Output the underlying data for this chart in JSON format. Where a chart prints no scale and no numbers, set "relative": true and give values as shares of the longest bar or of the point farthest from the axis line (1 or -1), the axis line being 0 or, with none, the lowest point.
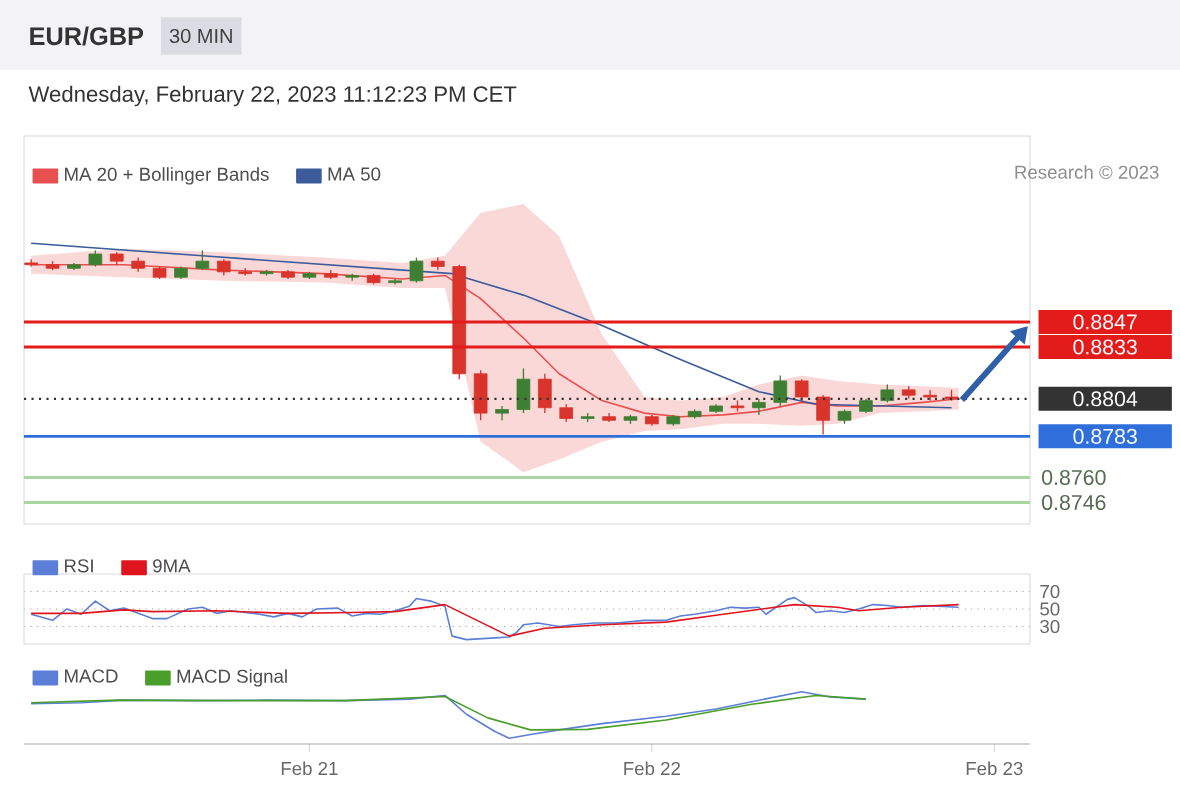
{
  "chart_data": [
    {
      "type": "candlestick",
      "title": "EUR/GBP",
      "subtitle": "Wednesday, February 22, 2023 11:12:23 PM CET",
      "annotations": [
        "30 MIN",
        "Research © 2023"
      ],
      "x": [
        "2023-02-20T04:30",
        "2023-02-20T06:00",
        "2023-02-20T07:30",
        "2023-02-20T09:00",
        "2023-02-20T10:30",
        "2023-02-20T12:00",
        "2023-02-20T13:30",
        "2023-02-20T15:00",
        "2023-02-20T16:30",
        "2023-02-20T18:00",
        "2023-02-20T19:30",
        "2023-02-20T21:00",
        "2023-02-20T22:30",
        "2023-02-21T00:00",
        "2023-02-21T01:30",
        "2023-02-21T03:00",
        "2023-02-21T04:30",
        "2023-02-21T06:00",
        "2023-02-21T07:30",
        "2023-02-21T09:00",
        "2023-02-21T10:30",
        "2023-02-21T12:00",
        "2023-02-21T13:30",
        "2023-02-21T15:00",
        "2023-02-21T16:30",
        "2023-02-21T18:00",
        "2023-02-21T19:30",
        "2023-02-21T21:00",
        "2023-02-21T22:30",
        "2023-02-22T00:00",
        "2023-02-22T01:30",
        "2023-02-22T03:00",
        "2023-02-22T04:30",
        "2023-02-22T06:00",
        "2023-02-22T07:30",
        "2023-02-22T09:00",
        "2023-02-22T10:30",
        "2023-02-22T12:00",
        "2023-02-22T13:30",
        "2023-02-22T15:00",
        "2023-02-22T16:30",
        "2023-02-22T18:00",
        "2023-02-22T19:30",
        "2023-02-22T21:00"
      ],
      "ohlc": [
        [
          0.888,
          0.8882,
          0.8878,
          0.8879
        ],
        [
          0.8879,
          0.8881,
          0.8876,
          0.8877
        ],
        [
          0.8877,
          0.888,
          0.8876,
          0.8879
        ],
        [
          0.8879,
          0.8887,
          0.8878,
          0.8885
        ],
        [
          0.8885,
          0.8886,
          0.8879,
          0.8881
        ],
        [
          0.8881,
          0.8883,
          0.8875,
          0.8877
        ],
        [
          0.8877,
          0.8878,
          0.8871,
          0.8872
        ],
        [
          0.8872,
          0.8878,
          0.8871,
          0.8877
        ],
        [
          0.8877,
          0.8887,
          0.8876,
          0.8881
        ],
        [
          0.8881,
          0.8882,
          0.8873,
          0.8875
        ],
        [
          0.8875,
          0.8877,
          0.8873,
          0.8874
        ],
        [
          0.8874,
          0.8876,
          0.8873,
          0.8875
        ],
        [
          0.8875,
          0.8876,
          0.8871,
          0.8872
        ],
        [
          0.8872,
          0.8875,
          0.8871,
          0.8874
        ],
        [
          0.8874,
          0.8876,
          0.8871,
          0.8872
        ],
        [
          0.8872,
          0.8874,
          0.887,
          0.8873
        ],
        [
          0.8873,
          0.8874,
          0.8868,
          0.8869
        ],
        [
          0.8869,
          0.8871,
          0.8868,
          0.887
        ],
        [
          0.887,
          0.8883,
          0.8869,
          0.8881
        ],
        [
          0.8881,
          0.8883,
          0.8876,
          0.8878
        ],
        [
          0.8878,
          0.8879,
          0.8815,
          0.8818
        ],
        [
          0.8818,
          0.882,
          0.8792,
          0.8796
        ],
        [
          0.8796,
          0.88,
          0.8792,
          0.8798
        ],
        [
          0.8798,
          0.8821,
          0.8796,
          0.8815
        ],
        [
          0.8815,
          0.8818,
          0.8796,
          0.8799
        ],
        [
          0.8799,
          0.8801,
          0.8791,
          0.8793
        ],
        [
          0.8793,
          0.8796,
          0.8791,
          0.8794
        ],
        [
          0.8794,
          0.8796,
          0.8791,
          0.8792
        ],
        [
          0.8792,
          0.8795,
          0.879,
          0.8794
        ],
        [
          0.8794,
          0.8795,
          0.8789,
          0.879
        ],
        [
          0.879,
          0.8795,
          0.8789,
          0.8794
        ],
        [
          0.8794,
          0.8798,
          0.8793,
          0.8797
        ],
        [
          0.8797,
          0.8801,
          0.8796,
          0.88
        ],
        [
          0.88,
          0.8803,
          0.8797,
          0.8799
        ],
        [
          0.8799,
          0.8804,
          0.8795,
          0.8802
        ],
        [
          0.8802,
          0.8817,
          0.88,
          0.8814
        ],
        [
          0.8814,
          0.8815,
          0.8802,
          0.8805
        ],
        [
          0.8805,
          0.8806,
          0.8784,
          0.8792
        ],
        [
          0.8792,
          0.8798,
          0.879,
          0.8797
        ],
        [
          0.8797,
          0.8804,
          0.8796,
          0.8803
        ],
        [
          0.8803,
          0.8812,
          0.8802,
          0.8809
        ],
        [
          0.8809,
          0.8811,
          0.8804,
          0.8806
        ],
        [
          0.8806,
          0.8809,
          0.8803,
          0.8805
        ],
        [
          0.8805,
          0.8809,
          0.8803,
          0.8804
        ]
      ],
      "xlim": [
        "2023-02-20T04:00",
        "2023-02-23T02:30"
      ],
      "ylim": [
        0.8734,
        0.8951
      ],
      "tick_labels": false,
      "legend": "top left",
      "series": [
        {
          "name": "MA 20 + Bollinger Bands",
          "type": "line",
          "color": "#e8504f",
          "x": [
            "2023-02-20T04:30",
            "2023-02-20T11:00",
            "2023-02-20T18:00",
            "2023-02-21T01:00",
            "2023-02-21T06:30",
            "2023-02-21T09:30",
            "2023-02-21T12:00",
            "2023-02-21T15:00",
            "2023-02-21T17:30",
            "2023-02-21T20:30",
            "2023-02-21T23:30",
            "2023-02-22T02:00",
            "2023-02-22T05:00",
            "2023-02-22T07:30",
            "2023-02-22T10:30",
            "2023-02-22T13:00",
            "2023-02-22T16:00",
            "2023-02-22T19:00",
            "2023-02-22T21:30"
          ],
          "values": [
            0.8879,
            0.8879,
            0.8876,
            0.8874,
            0.8871,
            0.8873,
            0.886,
            0.8838,
            0.8818,
            0.8803,
            0.8796,
            0.8794,
            0.8795,
            0.8797,
            0.8802,
            0.88,
            0.88,
            0.8802,
            0.8804
          ],
          "upper": [
            0.8884,
            0.8888,
            0.8886,
            0.8883,
            0.888,
            0.8884,
            0.8908,
            0.8913,
            0.8895,
            0.884,
            0.8805,
            0.8803,
            0.8805,
            0.8812,
            0.8817,
            0.8814,
            0.8812,
            0.8811,
            0.881
          ],
          "lower": [
            0.8874,
            0.8872,
            0.887,
            0.8869,
            0.8866,
            0.8866,
            0.878,
            0.8763,
            0.877,
            0.878,
            0.8786,
            0.8787,
            0.879,
            0.879,
            0.8789,
            0.879,
            0.8796,
            0.8797,
            0.8798
          ]
        },
        {
          "name": "MA 50",
          "type": "line",
          "color": "#3b5b9b",
          "x": [
            "2023-02-20T04:30",
            "2023-02-20T16:30",
            "2023-02-21T10:00",
            "2023-02-21T15:00",
            "2023-02-21T20:30",
            "2023-02-22T02:00",
            "2023-02-22T07:30",
            "2023-02-22T11:30",
            "2023-02-22T21:00"
          ],
          "values": [
            0.8891,
            0.8884,
            0.8874,
            0.8862,
            0.8845,
            0.8826,
            0.8808,
            0.8801,
            0.8799
          ]
        }
      ],
      "ref_lines": [
        {
          "axis": "y",
          "value": 0.8847,
          "label": "0.8847",
          "color": "#e31b1b"
        },
        {
          "axis": "y",
          "value": 0.8833,
          "label": "0.8833",
          "color": "#e31b1b"
        },
        {
          "axis": "y",
          "value": 0.8804,
          "label": "0.8804",
          "color": "#333333",
          "line_style": "dotted"
        },
        {
          "axis": "y",
          "value": 0.8783,
          "label": "0.8783",
          "color": "#2f6fdc"
        },
        {
          "axis": "y",
          "value": 0.876,
          "label": "0.8760",
          "color": "#a9d6a0"
        },
        {
          "axis": "y",
          "value": 0.8746,
          "label": "0.8746",
          "color": "#a9d6a0"
        }
      ]
    },
    {
      "type": "line",
      "xlim": [
        "2023-02-20T04:00",
        "2023-02-23T02:30"
      ],
      "ylim": [
        10,
        90
      ],
      "yticks": [
        30,
        50,
        70
      ],
      "grid": "y",
      "tick_labels": "y",
      "legend": "top left",
      "series": [
        {
          "name": "RSI",
          "color": "#5b7fd6",
          "x": [
            "2023-02-20T04:30",
            "2023-02-20T06:00",
            "2023-02-20T07:00",
            "2023-02-20T08:00",
            "2023-02-20T09:00",
            "2023-02-20T10:00",
            "2023-02-20T11:00",
            "2023-02-20T12:00",
            "2023-02-20T13:00",
            "2023-02-20T14:00",
            "2023-02-20T15:30",
            "2023-02-20T16:30",
            "2023-02-20T17:30",
            "2023-02-20T18:30",
            "2023-02-20T19:30",
            "2023-02-20T20:30",
            "2023-02-20T21:30",
            "2023-02-20T22:30",
            "2023-02-20T23:30",
            "2023-02-21T00:30",
            "2023-02-21T02:00",
            "2023-02-21T03:00",
            "2023-02-21T04:00",
            "2023-02-21T05:00",
            "2023-02-21T06:00",
            "2023-02-21T07:00",
            "2023-02-21T07:30",
            "2023-02-21T08:30",
            "2023-02-21T09:30",
            "2023-02-21T10:00",
            "2023-02-21T11:00",
            "2023-02-21T13:00",
            "2023-02-21T14:00",
            "2023-02-21T14:30",
            "2023-02-21T15:00",
            "2023-02-21T16:00",
            "2023-02-21T17:30",
            "2023-02-21T18:30",
            "2023-02-21T20:00",
            "2023-02-21T21:30",
            "2023-02-21T23:30",
            "2023-02-22T01:00",
            "2023-02-22T02:00",
            "2023-02-22T03:00",
            "2023-02-22T04:30",
            "2023-02-22T05:30",
            "2023-02-22T06:30",
            "2023-02-22T07:30",
            "2023-02-22T08:00",
            "2023-02-22T09:30",
            "2023-02-22T10:00",
            "2023-02-22T11:00",
            "2023-02-22T11:30",
            "2023-02-22T12:30",
            "2023-02-22T13:30",
            "2023-02-22T14:30",
            "2023-02-22T15:30",
            "2023-02-22T16:30",
            "2023-02-22T17:30",
            "2023-02-22T19:00",
            "2023-02-22T21:30"
          ],
          "values": [
            44,
            37,
            50,
            44,
            59,
            48,
            51,
            45,
            39,
            39,
            50,
            52,
            45,
            48,
            46,
            44,
            41,
            45,
            41,
            50,
            51,
            42,
            45,
            44,
            48,
            53,
            62,
            59,
            53,
            19,
            15,
            17,
            18,
            23,
            32,
            34,
            30,
            32,
            34,
            34,
            37,
            37,
            42,
            44,
            48,
            52,
            51,
            52,
            44,
            61,
            63,
            53,
            46,
            48,
            46,
            50,
            55,
            54,
            52,
            54,
            52
          ]
        },
        {
          "name": "9MA",
          "color": "#e0141e",
          "x": [
            "2023-02-20T04:30",
            "2023-02-20T08:00",
            "2023-02-20T11:00",
            "2023-02-20T13:00",
            "2023-02-20T17:30",
            "2023-02-20T22:30",
            "2023-02-21T03:00",
            "2023-02-21T06:00",
            "2023-02-21T09:30",
            "2023-02-21T14:00",
            "2023-02-21T16:30",
            "2023-02-21T20:30",
            "2023-02-22T01:00",
            "2023-02-22T05:00",
            "2023-02-22T10:00",
            "2023-02-22T13:00",
            "2023-02-22T14:30",
            "2023-02-22T17:30",
            "2023-02-22T21:30"
          ],
          "values": [
            45,
            45,
            49,
            47,
            48,
            45,
            46,
            47,
            55,
            19,
            28,
            32,
            35,
            44,
            55,
            52,
            48,
            52,
            55
          ]
        }
      ]
    },
    {
      "type": "line",
      "relative": true,
      "xlim": [
        "2023-02-20T04:00",
        "2023-02-23T02:30"
      ],
      "xticks": [
        {
          "value": "2023-02-21",
          "label": "Feb 21"
        },
        {
          "value": "2023-02-22",
          "label": "Feb 22"
        },
        {
          "value": "2023-02-23",
          "label": "Feb 23"
        }
      ],
      "tick_labels": "x",
      "legend": "top left",
      "series": [
        {
          "name": "MACD",
          "color": "#5b7fd6",
          "x": [
            "2023-02-20T04:30",
            "2023-02-20T08:00",
            "2023-02-20T11:00",
            "2023-02-20T16:00",
            "2023-02-20T21:00",
            "2023-02-21T02:30",
            "2023-02-21T07:00",
            "2023-02-21T09:30",
            "2023-02-21T11:00",
            "2023-02-21T13:00",
            "2023-02-21T14:00",
            "2023-02-21T15:30",
            "2023-02-21T17:30",
            "2023-02-21T20:30",
            "2023-02-22T01:00",
            "2023-02-22T04:30",
            "2023-02-22T07:00",
            "2023-02-22T10:30",
            "2023-02-22T12:30",
            "2023-02-22T15:00"
          ],
          "values": [
            0.77,
            0.79,
            0.84,
            0.83,
            0.84,
            0.83,
            0.86,
            0.93,
            0.57,
            0.24,
            0.11,
            0.18,
            0.27,
            0.39,
            0.53,
            0.67,
            0.81,
            1,
            0.9,
            0.86
          ]
        },
        {
          "name": "MACD Signal",
          "color": "#4a9e2a",
          "x": [
            "2023-02-20T04:30",
            "2023-02-20T10:30",
            "2023-02-20T18:30",
            "2023-02-21T02:30",
            "2023-02-21T09:30",
            "2023-02-21T12:30",
            "2023-02-21T15:30",
            "2023-02-21T19:30",
            "2023-02-22T01:00",
            "2023-02-22T07:00",
            "2023-02-22T11:30",
            "2023-02-22T15:00"
          ],
          "values": [
            0.79,
            0.84,
            0.83,
            0.83,
            0.91,
            0.5,
            0.27,
            0.28,
            0.46,
            0.76,
            0.93,
            0.86
          ]
        }
      ]
    }
  ]
}
